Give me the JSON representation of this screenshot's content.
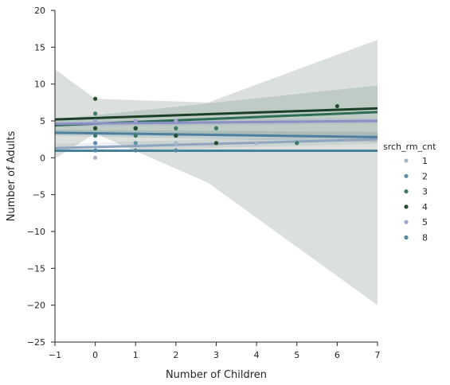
{
  "chart_data": {
    "type": "scatter",
    "xlabel": "Number of Children",
    "ylabel": "Number of Adults",
    "xlim": [
      -1,
      7
    ],
    "ylim": [
      -25,
      20
    ],
    "xticks": [
      -1,
      0,
      1,
      2,
      3,
      4,
      5,
      6,
      7
    ],
    "yticks": [
      20,
      15,
      10,
      5,
      0,
      -5,
      -10,
      -15,
      -20,
      -25
    ],
    "grid": false,
    "legend_title": "srch_rm_cnt",
    "legend_position": "right",
    "series": [
      {
        "name": "1",
        "color": "#a7b6c6",
        "line_color": "#8fa5be",
        "points": [
          [
            0,
            1
          ],
          [
            0,
            2
          ],
          [
            0,
            2
          ],
          [
            1,
            1
          ],
          [
            1,
            2
          ],
          [
            2,
            2
          ],
          [
            2,
            1
          ],
          [
            3,
            2
          ],
          [
            4,
            2
          ],
          [
            0,
            0
          ]
        ],
        "fit": {
          "x": [
            -1,
            7
          ],
          "y": [
            1.3,
            2.5
          ]
        },
        "ci": {
          "x": [
            -1,
            7
          ],
          "upper": [
            1.9,
            3.1
          ],
          "lower": [
            0.8,
            1.9
          ]
        }
      },
      {
        "name": "2",
        "color": "#5f8fa8",
        "line_color": "#4f7f9f",
        "points": [
          [
            0,
            2
          ],
          [
            0,
            3
          ],
          [
            0,
            4
          ],
          [
            1,
            2
          ],
          [
            1,
            3
          ],
          [
            1,
            4
          ],
          [
            2,
            3
          ],
          [
            2,
            4
          ],
          [
            3,
            4
          ],
          [
            3,
            2
          ],
          [
            5,
            2
          ]
        ],
        "fit": {
          "x": [
            -1,
            7
          ],
          "y": [
            3.4,
            2.8
          ]
        },
        "ci": {
          "x": [
            -1,
            7
          ],
          "upper": [
            3.8,
            3.5
          ],
          "lower": [
            3.0,
            2.1
          ]
        }
      },
      {
        "name": "3",
        "color": "#3f7a64",
        "line_color": "#2e6e55",
        "points": [
          [
            0,
            3
          ],
          [
            0,
            4
          ],
          [
            0,
            6
          ],
          [
            1,
            3
          ],
          [
            1,
            4
          ],
          [
            2,
            3
          ],
          [
            2,
            4
          ],
          [
            3,
            4
          ],
          [
            5,
            2
          ]
        ],
        "fit": {
          "x": [
            -1,
            7
          ],
          "y": [
            4.4,
            6.2
          ]
        },
        "ci": {
          "x": [
            -1,
            7
          ],
          "upper": [
            5.2,
            9.8
          ],
          "lower": [
            3.6,
            2.6
          ]
        }
      },
      {
        "name": "4",
        "color": "#264d34",
        "line_color": "#1c3f28",
        "points": [
          [
            0,
            4
          ],
          [
            0,
            8
          ],
          [
            1,
            4
          ],
          [
            1,
            4
          ],
          [
            2,
            3
          ],
          [
            3,
            2
          ],
          [
            6,
            7
          ]
        ],
        "fit": {
          "x": [
            -1,
            7
          ],
          "y": [
            5.2,
            6.7
          ]
        },
        "ci": {
          "x": [
            -1,
            0,
            2.8,
            7
          ],
          "upper": [
            12,
            8,
            7.5,
            16
          ],
          "lower": [
            -0.1,
            3.3,
            -3.4,
            -20
          ]
        }
      },
      {
        "name": "5",
        "color": "#9fa3d0",
        "line_color": "#8a8fc6",
        "points": [
          [
            0,
            5
          ],
          [
            1,
            5
          ],
          [
            2,
            5
          ]
        ],
        "fit": {
          "x": [
            -1,
            7
          ],
          "y": [
            4.6,
            5.0
          ]
        },
        "ci": {
          "x": [
            -1,
            7
          ],
          "upper": [
            5.0,
            5.4
          ],
          "lower": [
            4.2,
            4.6
          ]
        }
      },
      {
        "name": "8",
        "color": "#5588a0",
        "line_color": "#46829a",
        "points": [
          [
            0,
            1
          ],
          [
            1,
            1
          ],
          [
            2,
            1
          ]
        ],
        "fit": {
          "x": [
            -1,
            7
          ],
          "y": [
            0.95,
            0.95
          ]
        },
        "ci": {
          "x": [
            -1,
            7
          ],
          "upper": [
            1.1,
            1.1
          ],
          "lower": [
            0.8,
            0.8
          ]
        }
      }
    ]
  }
}
